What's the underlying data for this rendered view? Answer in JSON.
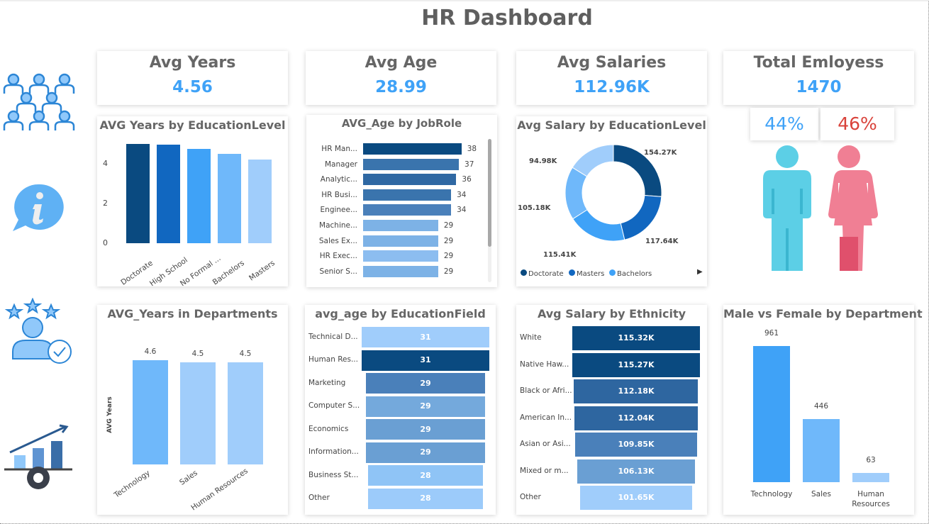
{
  "header": {
    "title": "HR Dashboard"
  },
  "kpis": [
    {
      "label": "Avg Years",
      "value": "4.56"
    },
    {
      "label": "Avg Age",
      "value": "28.99"
    },
    {
      "label": "Avg Salaries",
      "value": "112.96K"
    },
    {
      "label": "Total Emloyess",
      "value": "1470"
    }
  ],
  "gender": {
    "male_pct": "44%",
    "female_pct": "46%",
    "male_color": "#5ccfe6",
    "female_color": "#f07f94"
  },
  "side_icons": [
    "people-group-icon",
    "info-bubble-icon",
    "rated-person-icon",
    "growth-chart-gear-icon"
  ],
  "chart_data": [
    {
      "id": "years_by_edu",
      "type": "bar",
      "title": "AVG Years by EducationLevel",
      "categories": [
        "Doctorate",
        "High School",
        "No Formal ...",
        "Bachelors",
        "Masters"
      ],
      "values": [
        5.0,
        4.96,
        4.75,
        4.5,
        4.21
      ],
      "yticks": [
        "0",
        "2",
        "4"
      ],
      "ylim": [
        0,
        5.5
      ],
      "colors": [
        "#0a4a80",
        "#1167c0",
        "#3fa2f7",
        "#6fb8fa",
        "#a0cdfb"
      ]
    },
    {
      "id": "age_by_role",
      "type": "bar",
      "orientation": "horizontal",
      "title": "AVG_Age by JobRole",
      "categories": [
        "HR Man...",
        "Manager",
        "Analytic...",
        "HR Busi...",
        "Enginee...",
        "Machine...",
        "Sales Ex...",
        "HR Exec...",
        "Senior S..."
      ],
      "values": [
        38,
        37,
        36,
        34,
        34,
        29,
        29,
        29,
        29
      ],
      "labels": [
        "38",
        "37",
        "36",
        "34",
        "34",
        "29",
        "29",
        "29",
        "29"
      ],
      "colors": [
        "#0a4a80",
        "#3a74ad",
        "#2f68a3",
        "#3a74ad",
        "#4a80ba",
        "#7db2e6",
        "#7db2e6",
        "#8cbdf0",
        "#7db2e6"
      ]
    },
    {
      "id": "salary_by_edu",
      "type": "pie",
      "title": "Avg Salary by EducationLevel",
      "values": [
        154.27,
        117.64,
        115.41,
        105.18,
        94.98
      ],
      "labels": [
        "154.27K",
        "117.64K",
        "115.41K",
        "105.18K",
        "94.98K"
      ],
      "colors": [
        "#0a4a80",
        "#1167c0",
        "#3fa2f7",
        "#6fb8fa",
        "#a0cdfb"
      ],
      "legend": [
        "Doctorate",
        "Masters",
        "Bachelors"
      ],
      "legend_position": "bottom"
    },
    {
      "id": "years_by_dept",
      "type": "bar",
      "title": "AVG_Years in Departments",
      "ylabel": "AVG Years",
      "categories": [
        "Technology",
        "Sales",
        "Human Resources"
      ],
      "values": [
        4.6,
        4.5,
        4.5
      ],
      "labels": [
        "4.6",
        "4.5",
        "4.5"
      ],
      "colors": [
        "#6fb8fa",
        "#a0cdfb",
        "#a0cdfb"
      ]
    },
    {
      "id": "age_by_field",
      "type": "bar",
      "orientation": "funnel",
      "title": "avg_age by EducationField",
      "categories": [
        "Technical D...",
        "Human Res...",
        "Marketing",
        "Computer S...",
        "Economics",
        "Information...",
        "Business St...",
        "Other"
      ],
      "values": [
        31,
        31,
        29,
        29,
        29,
        29,
        28,
        28
      ],
      "labels": [
        "31",
        "31",
        "29",
        "29",
        "29",
        "29",
        "28",
        "28"
      ],
      "colors": [
        "#a0cdfb",
        "#0a4a80",
        "#4a80ba",
        "#74a9dc",
        "#6a9fd3",
        "#6a9fd3",
        "#8fc4f6",
        "#9ccbfa"
      ]
    },
    {
      "id": "salary_by_eth",
      "type": "bar",
      "orientation": "funnel",
      "title": "Avg Salary by Ethnicity",
      "categories": [
        "White",
        "Native Haw...",
        "Black or Afri...",
        "American In...",
        "Asian or Asi...",
        "Mixed or m...",
        "Other"
      ],
      "values": [
        115.32,
        115.27,
        112.18,
        112.04,
        109.85,
        106.13,
        101.65
      ],
      "labels": [
        "115.32K",
        "115.27K",
        "112.18K",
        "112.04K",
        "109.85K",
        "106.13K",
        "101.65K"
      ],
      "colors": [
        "#0a4a80",
        "#0a4a80",
        "#2e66a0",
        "#2e66a0",
        "#4a80ba",
        "#6a9fd3",
        "#a0cdfb"
      ]
    },
    {
      "id": "gender_by_dept",
      "type": "bar",
      "title": "Male vs Female by Department",
      "categories": [
        "Technology",
        "Sales",
        "Human\nResources"
      ],
      "values": [
        961,
        446,
        63
      ],
      "labels": [
        "961",
        "446",
        "63"
      ],
      "colors": [
        "#3fa2f7",
        "#6fb8fa",
        "#a0cdfb"
      ]
    }
  ]
}
